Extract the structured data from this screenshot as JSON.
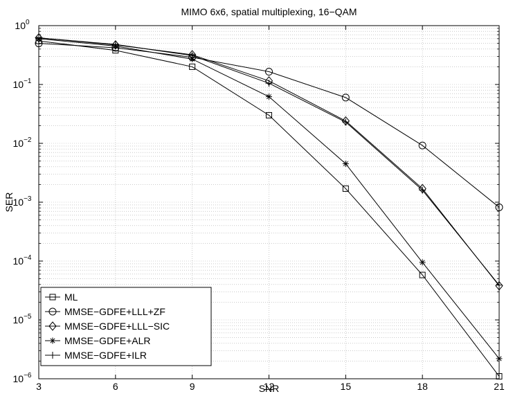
{
  "chart_data": {
    "type": "line",
    "title": "MIMO 6x6, spatial multiplexing, 16−QAM",
    "xlabel": "SNR",
    "ylabel": "SER",
    "x": [
      3,
      6,
      9,
      12,
      15,
      18,
      21
    ],
    "xlim": [
      3,
      21
    ],
    "ylim": [
      1e-06,
      1
    ],
    "yscale": "log",
    "xticks": [
      "3",
      "6",
      "9",
      "12",
      "15",
      "18",
      "21"
    ],
    "yticks": [
      {
        "base": "10",
        "exp": "0"
      },
      {
        "base": "10",
        "exp": "−1"
      },
      {
        "base": "10",
        "exp": "−2"
      },
      {
        "base": "10",
        "exp": "−3"
      },
      {
        "base": "10",
        "exp": "−4"
      },
      {
        "base": "10",
        "exp": "−5"
      },
      {
        "base": "10",
        "exp": "−6"
      }
    ],
    "grid": true,
    "legend_position": "bottom-left",
    "series": [
      {
        "name": "ML",
        "marker": "square",
        "values": [
          0.55,
          0.38,
          0.2,
          0.03,
          0.0017,
          5.8e-05,
          1.1e-06
        ]
      },
      {
        "name": "MMSE−GDFE+LLL+ZF",
        "marker": "circle",
        "values": [
          0.5,
          0.42,
          0.29,
          0.165,
          0.06,
          0.0092,
          0.00082
        ]
      },
      {
        "name": "MMSE−GDFE+LLL−SIC",
        "marker": "diamond",
        "values": [
          0.62,
          0.47,
          0.32,
          0.115,
          0.024,
          0.0017,
          3.8e-05
        ]
      },
      {
        "name": "MMSE−GDFE+ALR",
        "marker": "asterisk",
        "values": [
          0.6,
          0.45,
          0.27,
          0.062,
          0.0045,
          9.5e-05,
          2.2e-06
        ]
      },
      {
        "name": "MMSE−GDFE+ILR",
        "marker": "plus",
        "values": [
          0.62,
          0.48,
          0.31,
          0.105,
          0.023,
          0.0016,
          3.9e-05
        ]
      }
    ]
  }
}
